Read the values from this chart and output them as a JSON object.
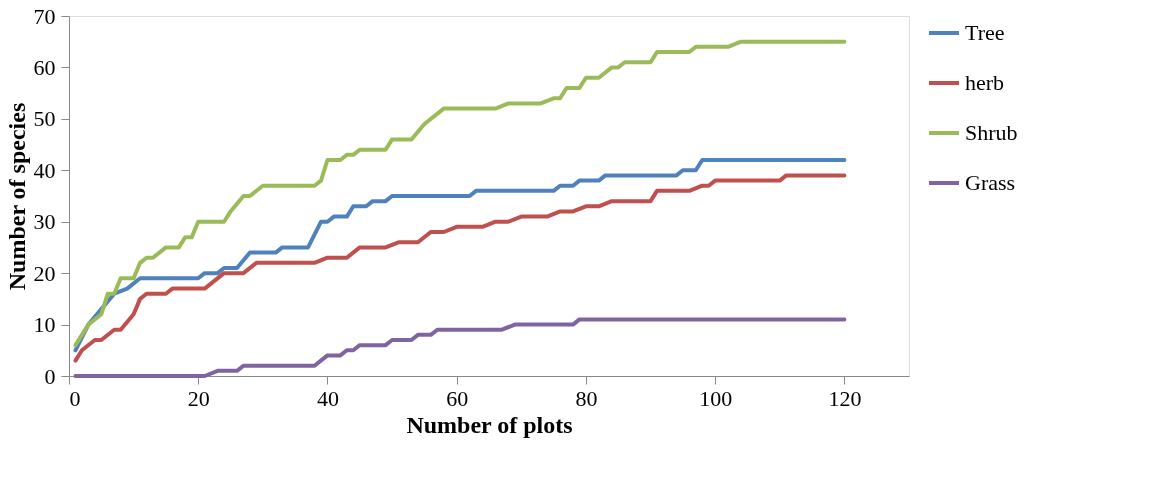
{
  "chart_data": {
    "type": "line",
    "xlabel": "Number of plots",
    "ylabel": "Number of species",
    "xlim": [
      0,
      130
    ],
    "xticks": [
      0,
      20,
      40,
      60,
      80,
      100,
      120
    ],
    "ylim": [
      0,
      70
    ],
    "yticks": [
      0,
      10,
      20,
      30,
      40,
      50,
      60,
      70
    ],
    "grid": false,
    "legend": "right",
    "marker": "none",
    "line_style": "solid",
    "series": [
      {
        "name": "Tree",
        "color": "#4f81bd",
        "x": [
          1,
          3,
          5,
          7,
          9,
          11,
          20,
          21,
          23,
          24,
          26,
          28,
          32,
          33,
          37,
          39,
          40,
          41,
          43,
          44,
          46,
          47,
          49,
          50,
          62,
          63,
          75,
          76,
          78,
          79,
          82,
          83,
          94,
          95,
          97,
          98,
          120
        ],
        "values": [
          5,
          10,
          13,
          16,
          17,
          19,
          19,
          20,
          20,
          21,
          21,
          24,
          24,
          25,
          25,
          30,
          30,
          31,
          31,
          33,
          33,
          34,
          34,
          35,
          35,
          36,
          36,
          37,
          37,
          38,
          38,
          39,
          39,
          40,
          40,
          42,
          42
        ]
      },
      {
        "name": "herb",
        "color": "#c0504d",
        "x": [
          1,
          2,
          4,
          5,
          7,
          8,
          10,
          11,
          12,
          15,
          16,
          21,
          24,
          27,
          29,
          38,
          40,
          43,
          45,
          49,
          51,
          54,
          56,
          58,
          60,
          64,
          66,
          68,
          70,
          74,
          76,
          78,
          80,
          82,
          84,
          90,
          91,
          96,
          98,
          99,
          100,
          110,
          111,
          120
        ],
        "values": [
          3,
          5,
          7,
          7,
          9,
          9,
          12,
          15,
          16,
          16,
          17,
          17,
          20,
          20,
          22,
          22,
          23,
          23,
          25,
          25,
          26,
          26,
          28,
          28,
          29,
          29,
          30,
          30,
          31,
          31,
          32,
          32,
          33,
          33,
          34,
          34,
          36,
          36,
          37,
          37,
          38,
          38,
          39,
          39
        ]
      },
      {
        "name": "Shrub",
        "color": "#9bbb59",
        "x": [
          1,
          3,
          5,
          6,
          7,
          8,
          10,
          11,
          12,
          13,
          15,
          17,
          18,
          19,
          20,
          24,
          25,
          27,
          28,
          30,
          38,
          39,
          40,
          42,
          43,
          44,
          45,
          49,
          50,
          53,
          55,
          58,
          66,
          68,
          73,
          75,
          76,
          77,
          79,
          80,
          82,
          84,
          85,
          86,
          90,
          91,
          96,
          97,
          102,
          104,
          120
        ],
        "values": [
          6,
          10,
          12,
          16,
          16,
          19,
          19,
          22,
          23,
          23,
          25,
          25,
          27,
          27,
          30,
          30,
          32,
          35,
          35,
          37,
          37,
          38,
          42,
          42,
          43,
          43,
          44,
          44,
          46,
          46,
          49,
          52,
          52,
          53,
          53,
          54,
          54,
          56,
          56,
          58,
          58,
          60,
          60,
          61,
          61,
          63,
          63,
          64,
          64,
          65,
          65
        ]
      },
      {
        "name": "Grass",
        "color": "#8064a2",
        "x": [
          1,
          21,
          23,
          26,
          27,
          38,
          40,
          42,
          43,
          44,
          45,
          49,
          50,
          53,
          54,
          56,
          57,
          67,
          69,
          78,
          79,
          120
        ],
        "values": [
          0,
          0,
          1,
          1,
          2,
          2,
          4,
          4,
          5,
          5,
          6,
          6,
          7,
          7,
          8,
          8,
          9,
          9,
          10,
          10,
          11,
          11
        ]
      }
    ]
  }
}
